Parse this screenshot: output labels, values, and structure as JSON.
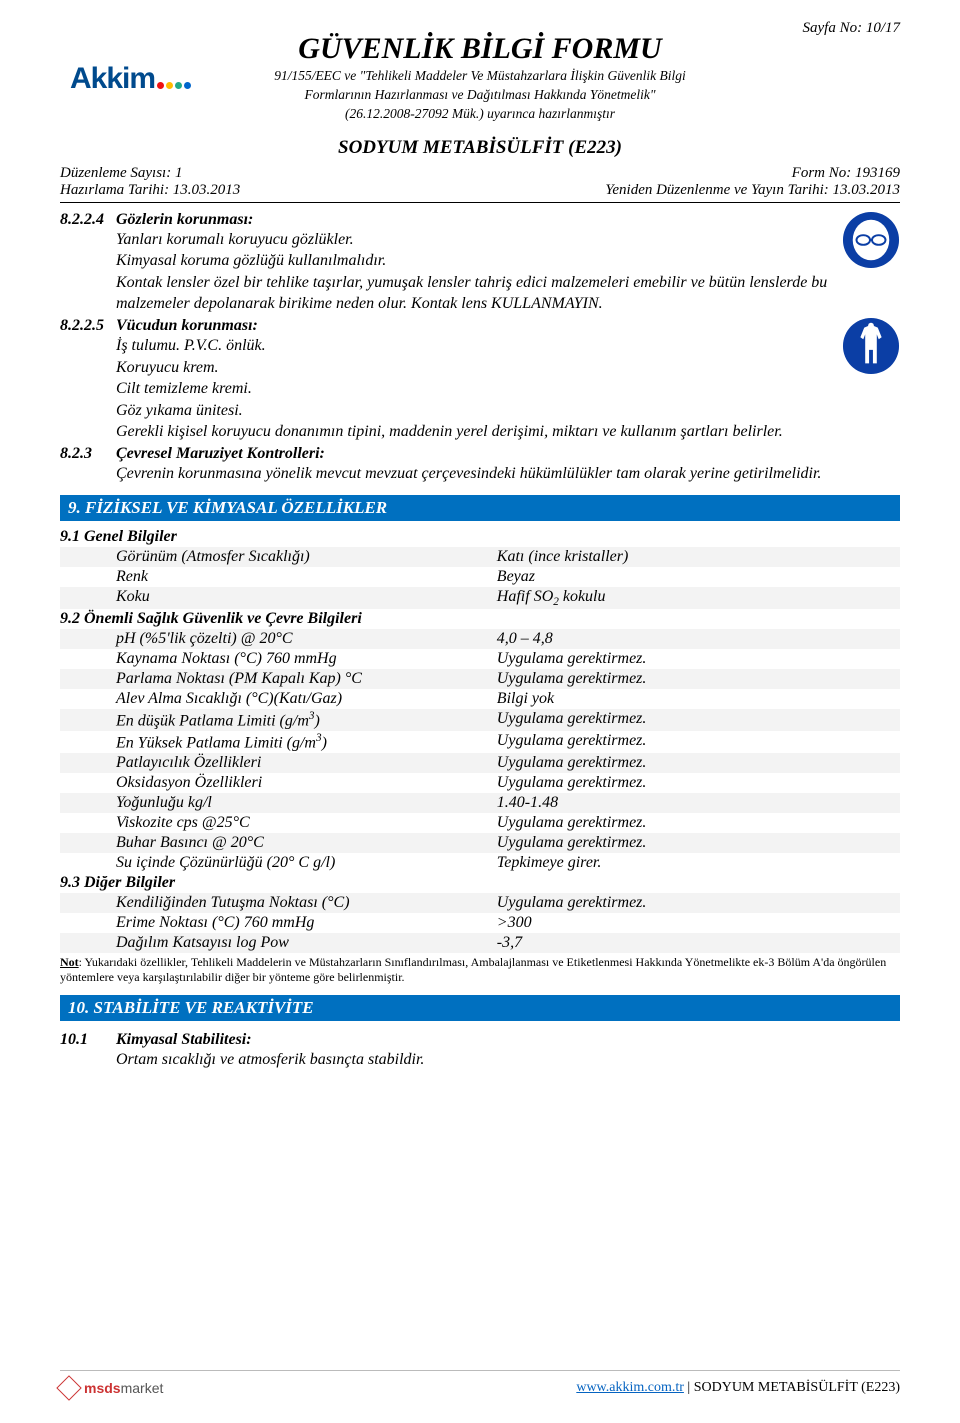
{
  "page_no": "Sayfa No:  10/17",
  "main_title": "GÜVENLİK BİLGİ FORMU",
  "header_sub_1": "91/155/EEC ve \"Tehlikeli Maddeler Ve Müstahzarlara İlişkin Güvenlik Bilgi",
  "header_sub_2": "Formlarının Hazırlanması ve Dağıtılması Hakkında Yönetmelik\"",
  "header_sub_3": "(26.12.2008-27092 Mük.) uyarınca hazırlanmıştır",
  "product_title": "SODYUM METABİSÜLFİT (E223)",
  "meta": {
    "left1": "Düzenleme Sayısı: 1",
    "right1": "Form No: 193169",
    "left2": "Hazırlama Tarihi: 13.03.2013",
    "right2": "Yeniden Düzenlenme ve Yayın Tarihi: 13.03.2013"
  },
  "logo": {
    "text": "Akkim",
    "dot_colors": [
      "#e11",
      "#fb0",
      "#2a8",
      "#06c"
    ]
  },
  "ppe_colors": {
    "circle": "#0b3ea5",
    "inner": "#ffffff"
  },
  "sections": {
    "s8224": {
      "num": "8.2.2.4",
      "title": "Gözlerin korunması:",
      "lines": [
        "Yanları korumalı koruyucu gözlükler.",
        "Kimyasal koruma gözlüğü kullanılmalıdır.",
        "Kontak lensler özel bir tehlike taşırlar, yumuşak lensler tahriş edici malzemeleri emebilir ve bütün lenslerde bu malzemeler depolanarak birikime neden olur. Kontak lens KULLANMAYIN."
      ]
    },
    "s8225": {
      "num": "8.2.2.5",
      "title": "Vücudun korunması:",
      "lines": [
        "İş tulumu. P.V.C. önlük.",
        "Koruyucu krem.",
        "Cilt temizleme kremi.",
        "Göz yıkama ünitesi.",
        "Gerekli kişisel koruyucu donanımın tipini, maddenin yerel derişimi, miktarı ve kullanım şartları belirler."
      ]
    },
    "s823": {
      "num": "8.2.3",
      "title": "Çevresel Maruziyet Kontrolleri:",
      "lines": [
        "Çevrenin korunmasına yönelik mevcut mevzuat çerçevesindeki hükümlülükler tam olarak yerine getirilmelidir."
      ]
    }
  },
  "bar9": "9.   FİZİKSEL VE KİMYASAL ÖZELLİKLER",
  "table9": {
    "g91": "9.1 Genel Bilgiler",
    "g92": "9.2 Önemli Sağlık Güvenlik ve Çevre Bilgileri",
    "g93": "9.3 Diğer Bilgiler",
    "rows": [
      {
        "k": "Görünüm (Atmosfer Sıcaklığı)",
        "v": "Katı (ince kristaller)",
        "shade": true
      },
      {
        "k": "Renk",
        "v": "Beyaz"
      },
      {
        "k": "Koku",
        "v_html": "Hafif SO<sub>2</sub> kokulu",
        "shade": true
      },
      {
        "group": "g92"
      },
      {
        "k": "pH (%5'lik çözelti) @ 20°C",
        "v": "4,0 – 4,8",
        "shade": true
      },
      {
        "k": "Kaynama Noktası (°C) 760 mmHg",
        "v": "Uygulama gerektirmez."
      },
      {
        "k": "Parlama Noktası (PM Kapalı Kap)  °C",
        "v": "Uygulama gerektirmez.",
        "shade": true
      },
      {
        "k": "Alev Alma Sıcaklığı (°C)(Katı/Gaz)",
        "v": "Bilgi yok"
      },
      {
        "k_html": "En düşük Patlama Limiti (g/m<sup>3</sup>)",
        "v": "Uygulama gerektirmez.",
        "shade": true
      },
      {
        "k_html": "En Yüksek Patlama Limiti (g/m<sup>3</sup>)",
        "v": "Uygulama gerektirmez."
      },
      {
        "k": "Patlayıcılık  Özellikleri",
        "v": "Uygulama gerektirmez.",
        "shade": true
      },
      {
        "k": "Oksidasyon Özellikleri",
        "v": "Uygulama gerektirmez."
      },
      {
        "k": "Yoğunluğu kg/l",
        "v": "1.40-1.48",
        "shade": true
      },
      {
        "k": "Viskozite cps @25°C",
        "v": "Uygulama gerektirmez."
      },
      {
        "k": "Buhar Basıncı  @ 20°C",
        "v": "Uygulama gerektirmez.",
        "shade": true
      },
      {
        "k": "Su içinde Çözünürlüğü (20° C g/l)",
        "v": "Tepkimeye girer."
      },
      {
        "group": "g93"
      },
      {
        "k": "Kendiliğinden Tutuşma Noktası (°C)",
        "v": "Uygulama gerektirmez.",
        "shade": true
      },
      {
        "k": "Erime Noktası (°C) 760 mmHg",
        "v": ">300"
      },
      {
        "k": "Dağılım Katsayısı log Pow",
        "v": "-3,7",
        "shade": true
      }
    ]
  },
  "note_label": "Not",
  "note_text": ": Yukarıdaki özellikler, Tehlikeli Maddelerin ve Müstahzarların Sınıflandırılması, Ambalajlanması ve Etiketlenmesi Hakkında Yönetmelikte ek-3 Bölüm A'da öngörülen yöntemlere veya karşılaştırılabilir diğer bir yönteme göre belirlenmiştir.",
  "bar10": "10. STABİLİTE VE REAKTİVİTE",
  "s101": {
    "num": "10.1",
    "title": "Kimyasal Stabilitesi:",
    "line": "Ortam sıcaklığı ve atmosferik basınçta stabildir."
  },
  "footer": {
    "brand1": "msds",
    "brand2": "market",
    "link": "www.akkim.com.tr",
    "suffix": " | SODYUM METABİSÜLFİT (E223)"
  }
}
